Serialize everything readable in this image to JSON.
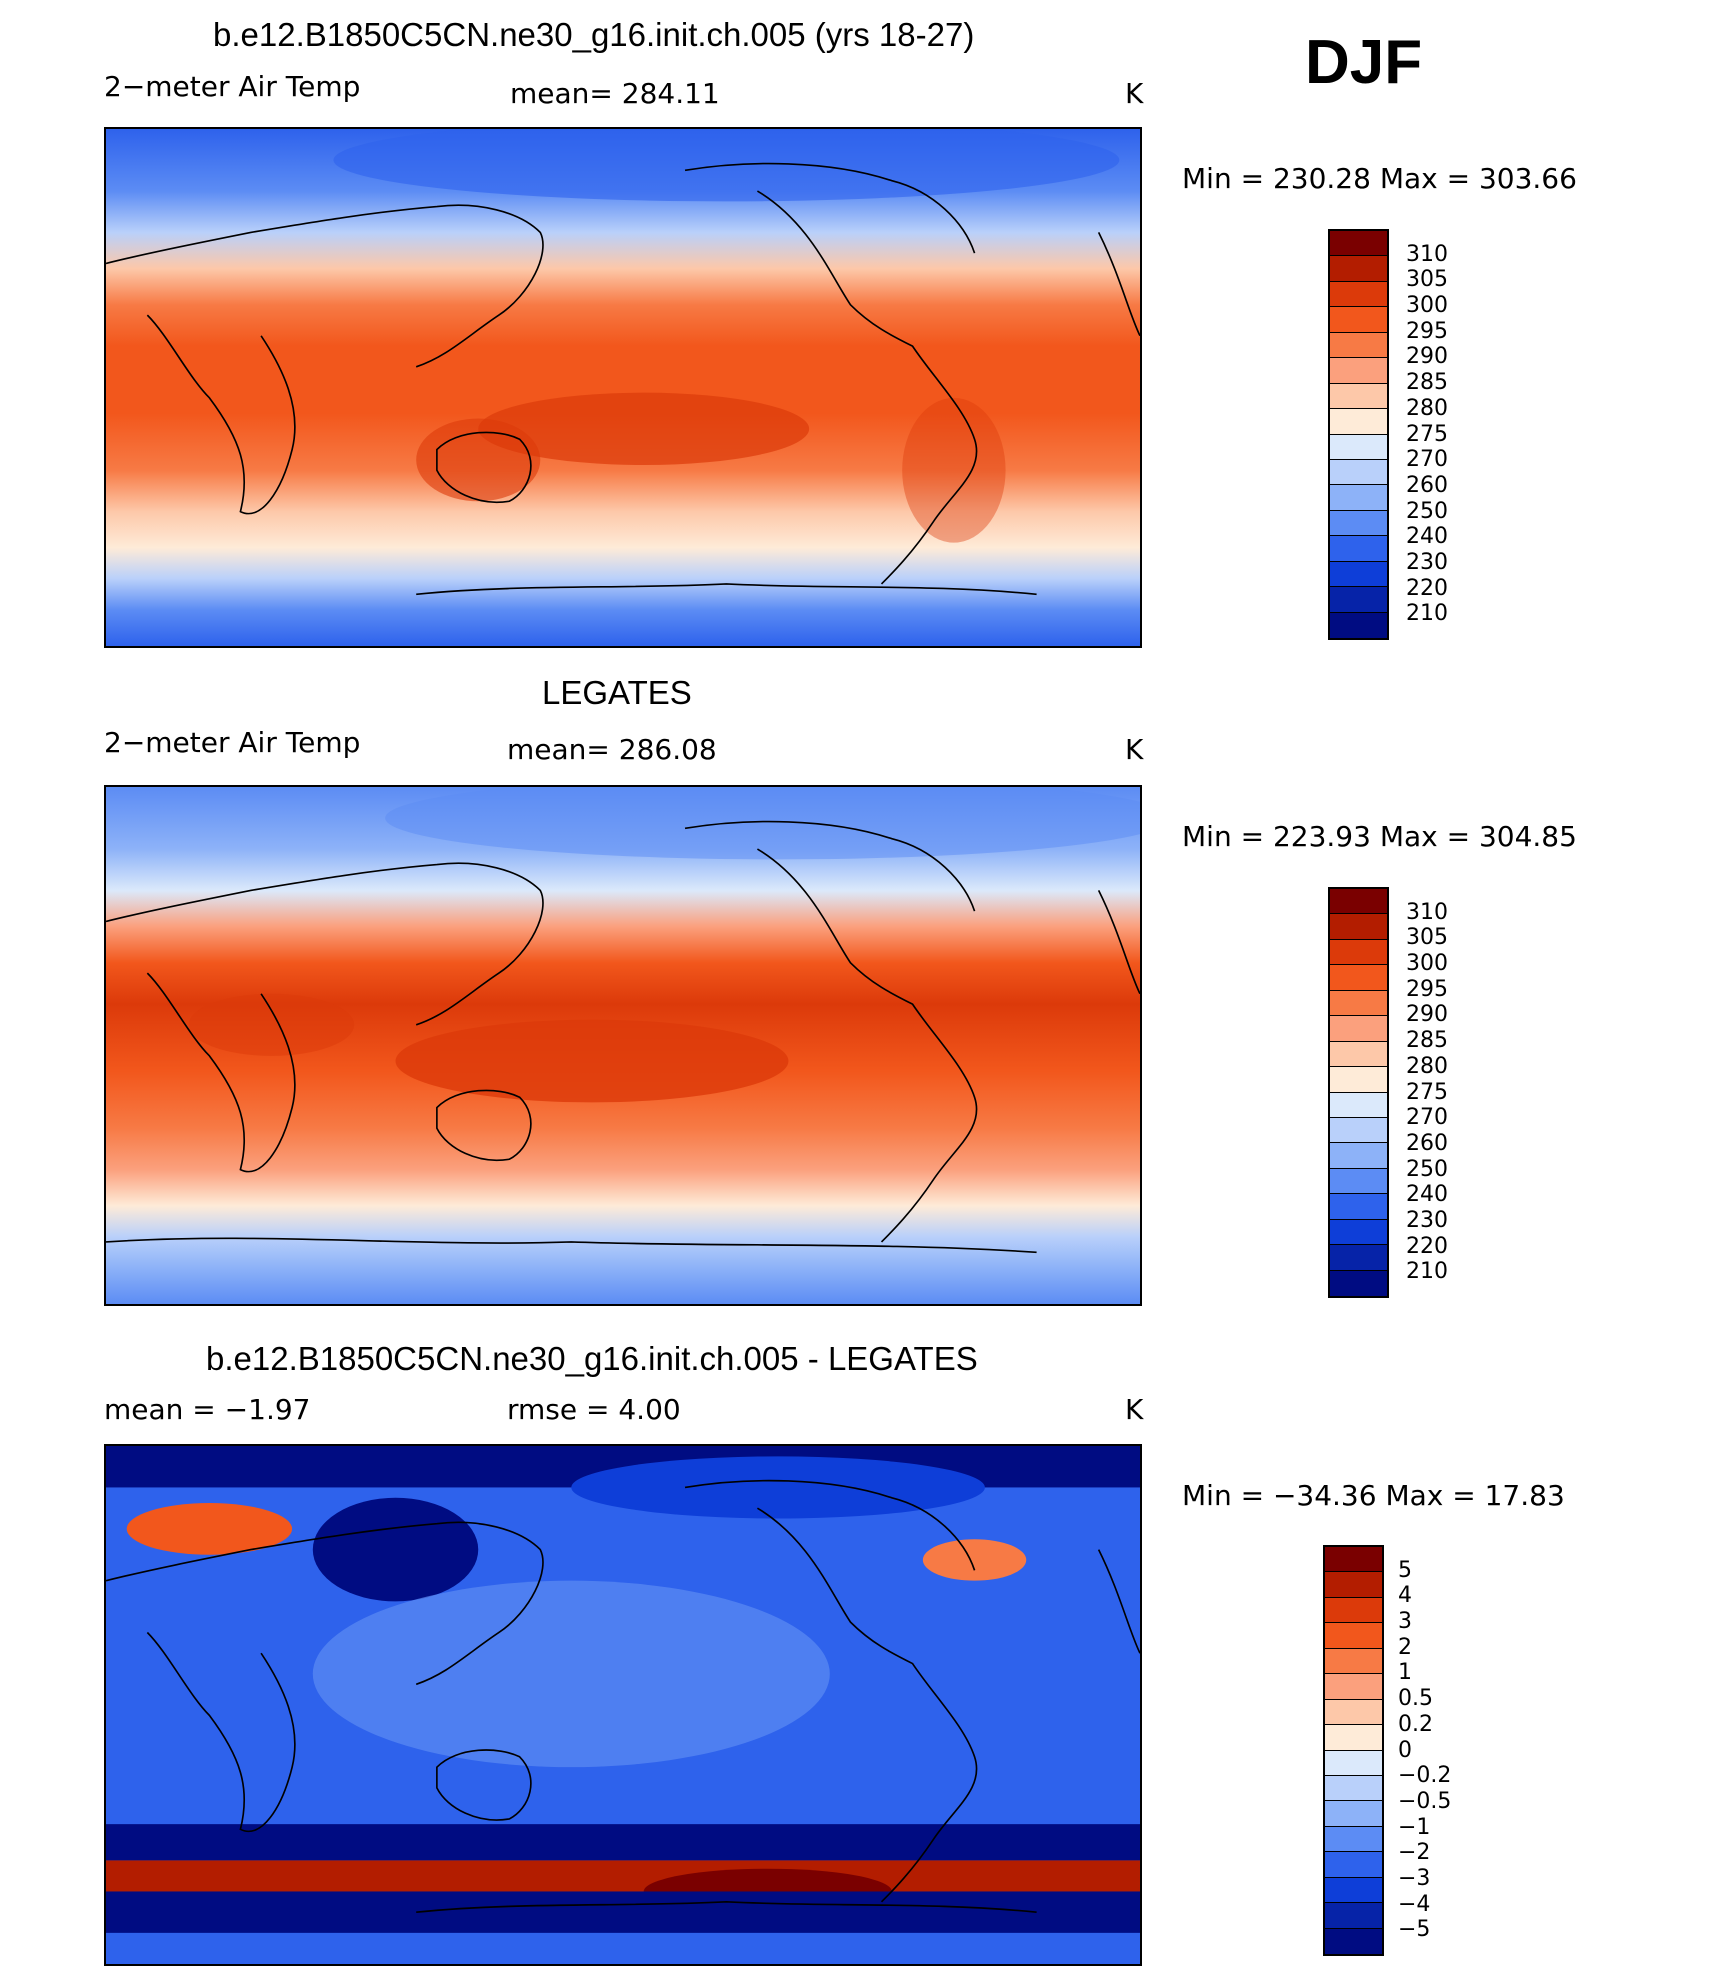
{
  "season": "DJF",
  "panels": [
    {
      "title": "b.e12.B1850C5CN.ne30_g16.init.ch.005 (yrs 18-27)",
      "variable": "2−meter Air Temp",
      "mean": "mean=  284.11",
      "units": "K",
      "minmax": "Min  =  230.28  Max  =  303.66"
    },
    {
      "title": "LEGATES",
      "variable": "2−meter Air Temp",
      "mean": "mean=  286.08",
      "units": "K",
      "minmax": "Min  =  223.93  Max  =  304.85"
    },
    {
      "title": "b.e12.B1850C5CN.ne30_g16.init.ch.005 - LEGATES",
      "variable": "mean  =    −1.97",
      "mean": "rmse  =     4.00",
      "units": "K",
      "minmax": "Min  =  −34.36  Max  =    17.83"
    }
  ],
  "colorbars": {
    "absolute": {
      "labels": [
        "310",
        "305",
        "300",
        "295",
        "290",
        "285",
        "280",
        "275",
        "270",
        "260",
        "250",
        "240",
        "230",
        "220",
        "210"
      ],
      "colors": [
        "#7a0000",
        "#b31d00",
        "#dc3a0a",
        "#f2571c",
        "#f77a45",
        "#fba07d",
        "#fdc8a9",
        "#feebd8",
        "#dbe9fb",
        "#b9d0fa",
        "#8db2f8",
        "#5c8cf4",
        "#2e62ec",
        "#0e3ed8",
        "#0623a8",
        "#000c82"
      ]
    },
    "difference": {
      "labels": [
        "5",
        "4",
        "3",
        "2",
        "1",
        "0.5",
        "0.2",
        "0",
        "−0.2",
        "−0.5",
        "−1",
        "−2",
        "−3",
        "−4",
        "−5"
      ],
      "colors": [
        "#7a0000",
        "#b31d00",
        "#dc3a0a",
        "#f2571c",
        "#f77a45",
        "#fba07d",
        "#fdc8a9",
        "#feebd8",
        "#dbe9fb",
        "#b9d0fa",
        "#8db2f8",
        "#5c8cf4",
        "#2e62ec",
        "#0e3ed8",
        "#0623a8",
        "#000c82"
      ]
    }
  }
}
